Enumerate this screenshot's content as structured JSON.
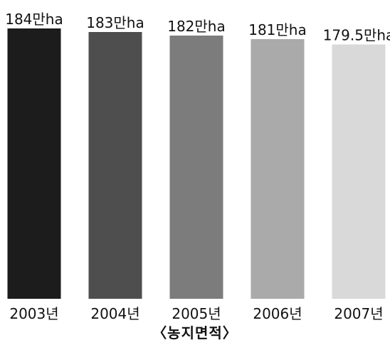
{
  "chart_data": {
    "type": "bar",
    "caption": "〈농지면적〉",
    "categories": [
      "2003년",
      "2004년",
      "2005년",
      "2006년",
      "2007년"
    ],
    "values": [
      184,
      183,
      182,
      181,
      179.5
    ],
    "value_labels": [
      "184만ha",
      "183만ha",
      "182만ha",
      "181만ha",
      "179.5만ha"
    ],
    "bar_colors": [
      "#1c1c1c",
      "#4e4e4e",
      "#7c7c7c",
      "#aaaaaa",
      "#d9d9d9"
    ],
    "legend": "none",
    "grid": false
  }
}
